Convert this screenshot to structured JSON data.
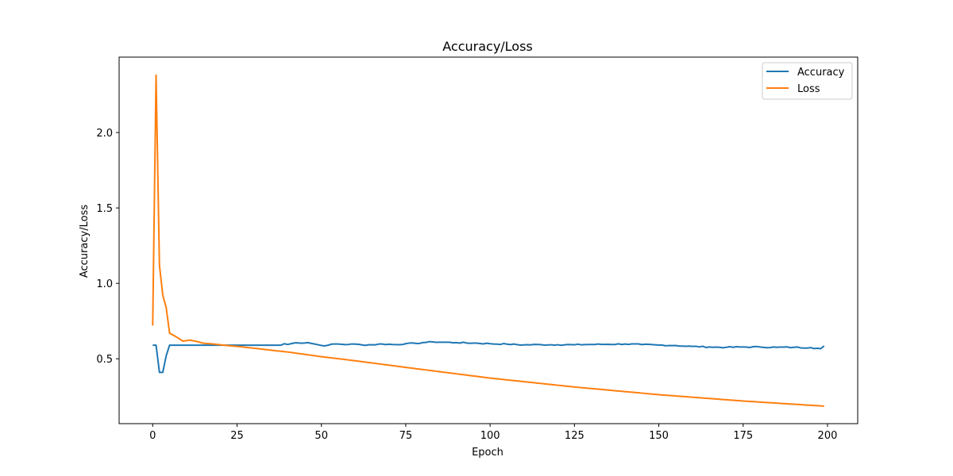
{
  "chart_data": {
    "type": "line",
    "title": "Accuracy/Loss",
    "xlabel": "Epoch",
    "ylabel": "Accuracy/Loss",
    "xlim": [
      -9.95,
      208.95
    ],
    "ylim": [
      0.07,
      2.5
    ],
    "xticks": [
      0,
      25,
      50,
      75,
      100,
      125,
      150,
      175,
      200
    ],
    "yticks": [
      0.5,
      1.0,
      1.5,
      2.0
    ],
    "ytick_labels": [
      "0.5",
      "1.0",
      "1.5",
      "2.0"
    ],
    "grid": false,
    "legend": {
      "position": "top-right"
    },
    "series": [
      {
        "name": "Accuracy",
        "color": "#1f77b4",
        "keypoints": [
          [
            0,
            0.59
          ],
          [
            1,
            0.59
          ],
          [
            2,
            0.41
          ],
          [
            3,
            0.41
          ],
          [
            4,
            0.52
          ],
          [
            5,
            0.59
          ],
          [
            10,
            0.59
          ],
          [
            20,
            0.59
          ],
          [
            30,
            0.59
          ],
          [
            38,
            0.59
          ],
          [
            39,
            0.6
          ],
          [
            40,
            0.595
          ],
          [
            42,
            0.605
          ],
          [
            46,
            0.607
          ],
          [
            48,
            0.598
          ],
          [
            50,
            0.588
          ],
          [
            52,
            0.59
          ],
          [
            54,
            0.598
          ],
          [
            58,
            0.595
          ],
          [
            60,
            0.597
          ],
          [
            62,
            0.592
          ],
          [
            65,
            0.593
          ],
          [
            68,
            0.598
          ],
          [
            72,
            0.594
          ],
          [
            75,
            0.6
          ],
          [
            78,
            0.602
          ],
          [
            80,
            0.607
          ],
          [
            83,
            0.612
          ],
          [
            86,
            0.61
          ],
          [
            90,
            0.607
          ],
          [
            95,
            0.604
          ],
          [
            100,
            0.6
          ],
          [
            105,
            0.597
          ],
          [
            110,
            0.592
          ],
          [
            115,
            0.594
          ],
          [
            120,
            0.593
          ],
          [
            125,
            0.593
          ],
          [
            130,
            0.595
          ],
          [
            135,
            0.596
          ],
          [
            140,
            0.598
          ],
          [
            145,
            0.594
          ],
          [
            150,
            0.591
          ],
          [
            155,
            0.588
          ],
          [
            158,
            0.583
          ],
          [
            160,
            0.582
          ],
          [
            165,
            0.578
          ],
          [
            170,
            0.576
          ],
          [
            175,
            0.578
          ],
          [
            180,
            0.578
          ],
          [
            185,
            0.576
          ],
          [
            190,
            0.576
          ],
          [
            195,
            0.574
          ],
          [
            198,
            0.567
          ],
          [
            199,
            0.585
          ]
        ],
        "noise": 0.004
      },
      {
        "name": "Loss",
        "color": "#ff7f0e",
        "keypoints": [
          [
            0,
            0.72
          ],
          [
            1,
            2.38
          ],
          [
            2,
            1.12
          ],
          [
            3,
            0.92
          ],
          [
            4,
            0.84
          ],
          [
            5,
            0.67
          ],
          [
            7,
            0.645
          ],
          [
            9,
            0.617
          ],
          [
            11,
            0.624
          ],
          [
            13,
            0.615
          ],
          [
            15,
            0.603
          ],
          [
            18,
            0.598
          ],
          [
            22,
            0.588
          ],
          [
            26,
            0.58
          ],
          [
            30,
            0.57
          ],
          [
            35,
            0.557
          ],
          [
            40,
            0.545
          ],
          [
            50,
            0.514
          ],
          [
            60,
            0.487
          ],
          [
            75,
            0.443
          ],
          [
            100,
            0.372
          ],
          [
            125,
            0.313
          ],
          [
            150,
            0.262
          ],
          [
            175,
            0.22
          ],
          [
            199,
            0.186
          ]
        ],
        "noise": 0
      }
    ]
  }
}
